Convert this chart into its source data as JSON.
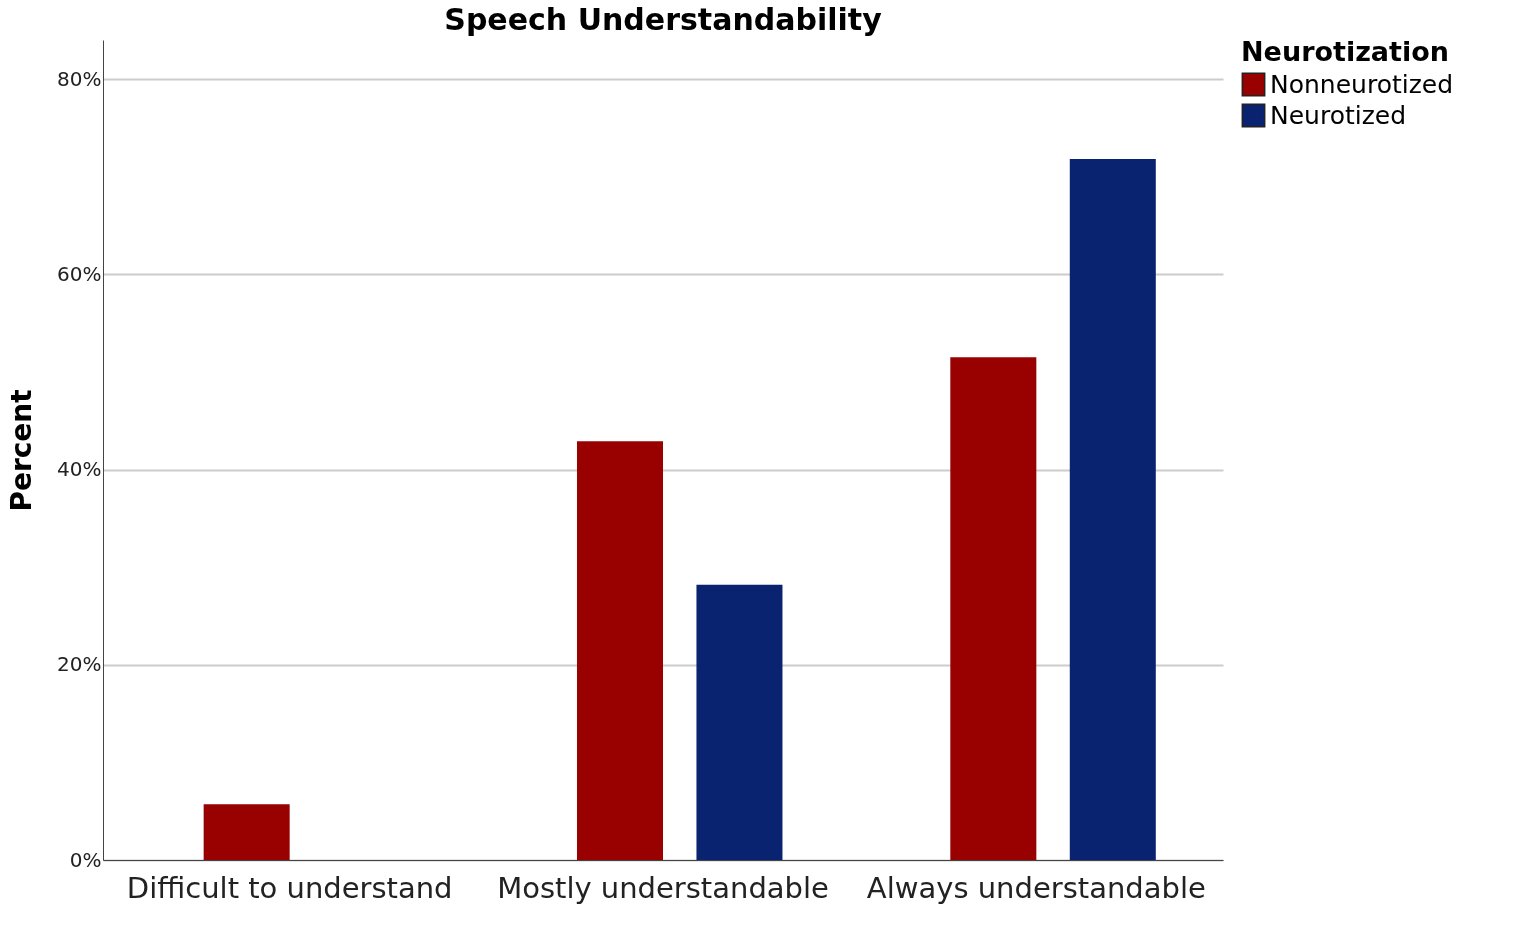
{
  "chart_data": {
    "type": "bar",
    "title": "Speech Understandability",
    "ylabel": "Percent",
    "legend_title": "Neurotization",
    "categories": [
      "Difficult to understand",
      "Mostly understandable",
      "Always understandable"
    ],
    "series": [
      {
        "name": "Nonneurotized",
        "color": "#990000",
        "values": [
          5.7,
          42.9,
          51.5
        ]
      },
      {
        "name": "Neurotized",
        "color": "#0a2370",
        "values": [
          0,
          28.2,
          71.8
        ]
      }
    ],
    "ylim": [
      0,
      84
    ],
    "yticks": [
      {
        "value": 0,
        "label": "0%"
      },
      {
        "value": 20,
        "label": "20%"
      },
      {
        "value": 40,
        "label": "40%"
      },
      {
        "value": 60,
        "label": "60%"
      },
      {
        "value": 80,
        "label": "80%"
      }
    ],
    "grid": "y",
    "legend": "top right"
  }
}
